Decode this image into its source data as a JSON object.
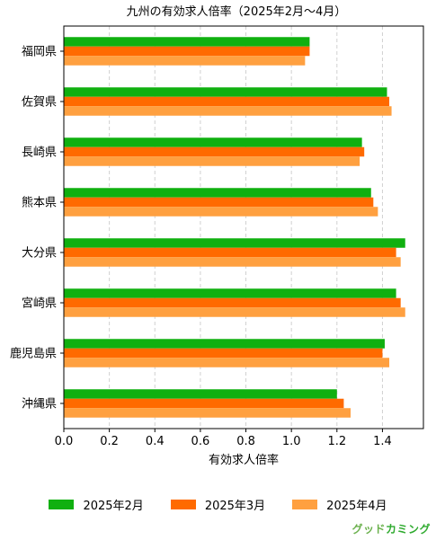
{
  "chart_data": {
    "type": "bar",
    "orientation": "horizontal",
    "title": "九州の有効求人倍率（2025年2月〜4月）",
    "xlabel": "有効求人倍率",
    "ylabel": "",
    "xlim": [
      0,
      1.58
    ],
    "xticks": [
      "0.0",
      "0.2",
      "0.4",
      "0.6",
      "0.8",
      "1.0",
      "1.2",
      "1.4"
    ],
    "grid": "x-dashed",
    "legend_position": "bottom",
    "categories": [
      "福岡県",
      "佐賀県",
      "長崎県",
      "熊本県",
      "大分県",
      "宮崎県",
      "鹿児島県",
      "沖縄県"
    ],
    "series": [
      {
        "name": "2025年2月",
        "color": "#10b010",
        "values": [
          1.08,
          1.42,
          1.31,
          1.35,
          1.5,
          1.46,
          1.41,
          1.2
        ]
      },
      {
        "name": "2025年3月",
        "color": "#ff6a00",
        "values": [
          1.08,
          1.43,
          1.32,
          1.36,
          1.46,
          1.48,
          1.4,
          1.23
        ]
      },
      {
        "name": "2025年4月",
        "color": "#ffa040",
        "values": [
          1.06,
          1.44,
          1.3,
          1.38,
          1.48,
          1.5,
          1.43,
          1.26
        ]
      }
    ]
  },
  "watermark": {
    "prefix": "グッド",
    "suffix": "カミング",
    "prefix_color": "#6ab04c",
    "suffix_color": "#2eaa2e"
  }
}
